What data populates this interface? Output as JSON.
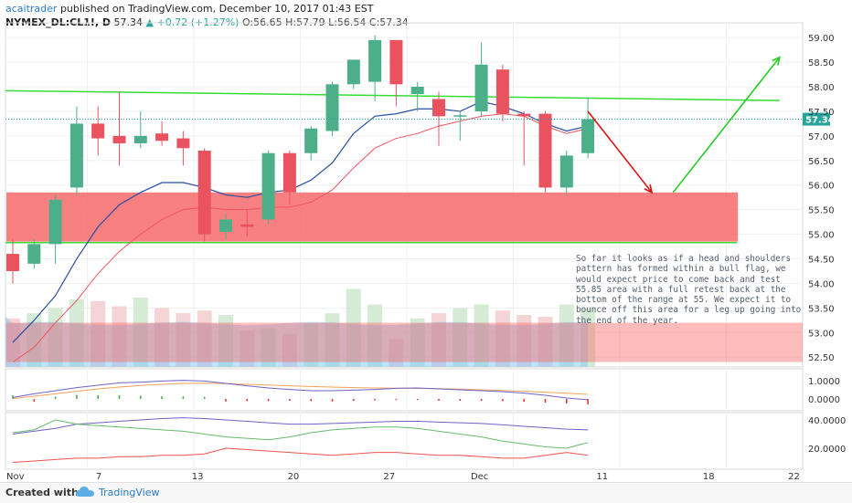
{
  "header": {
    "author": "acaitrader",
    "published": "published on TradingView.com, December 10, 2017 01:43 EST",
    "symbol": "NYMEX_DL:CL1!, D",
    "last": "57.34",
    "change_arrow": "▲",
    "change": "+0.72 (+1.27%)",
    "ohlc": "O:56.65 H:57.79 L:56.54 C:57.34"
  },
  "annotation": "So far it looks as if a head and shoulders pattern has formed within a bull flag, we would expect price to come back and test 55.85 area with a full retest back at the bottom of the range at 55. We expect it to bounce off this area for a leg up going into the end of the year.",
  "footer": {
    "created": "Created with",
    "brand": "TradingView"
  },
  "colors": {
    "bull": "#4caf8a",
    "bear": "#e8535f",
    "zone": "#f86a6a",
    "flag_line": "#33dd33",
    "ma_fast": "#2a4fa3",
    "ma_slow": "#ee5560",
    "projection_up": "#22cc22",
    "projection_down": "#dd1111",
    "volume_area": "#7ec8f5"
  },
  "chart_data": {
    "type": "candlestick",
    "symbol": "NYMEX_DL:CL1!",
    "timeframe": "D",
    "x_labels": [
      "Nov",
      "7",
      "13",
      "20",
      "27",
      "Dec",
      "11",
      "18",
      "22"
    ],
    "y_ticks": [
      52.5,
      53.0,
      53.5,
      54.0,
      54.5,
      55.0,
      55.5,
      56.0,
      56.5,
      57.0,
      57.5,
      58.0,
      58.5,
      59.0
    ],
    "ylim": [
      52.3,
      59.3
    ],
    "last_price": 57.34,
    "candles": [
      {
        "o": 54.6,
        "h": 54.9,
        "l": 54.0,
        "c": 54.25
      },
      {
        "o": 54.4,
        "h": 54.9,
        "l": 54.3,
        "c": 54.8
      },
      {
        "o": 54.8,
        "h": 55.8,
        "l": 54.4,
        "c": 55.7
      },
      {
        "o": 55.95,
        "h": 57.6,
        "l": 55.8,
        "c": 57.25
      },
      {
        "o": 57.25,
        "h": 57.6,
        "l": 56.6,
        "c": 56.95
      },
      {
        "o": 57.0,
        "h": 57.9,
        "l": 56.4,
        "c": 56.85
      },
      {
        "o": 56.85,
        "h": 57.5,
        "l": 56.75,
        "c": 57.0
      },
      {
        "o": 57.05,
        "h": 57.3,
        "l": 56.8,
        "c": 56.9
      },
      {
        "o": 56.95,
        "h": 57.1,
        "l": 56.4,
        "c": 56.75
      },
      {
        "o": 56.7,
        "h": 56.75,
        "l": 54.85,
        "c": 55.0
      },
      {
        "o": 55.05,
        "h": 55.4,
        "l": 54.9,
        "c": 55.3
      },
      {
        "o": 55.2,
        "h": 55.5,
        "l": 54.95,
        "c": 55.15
      },
      {
        "o": 55.3,
        "h": 56.7,
        "l": 55.2,
        "c": 56.65
      },
      {
        "o": 56.65,
        "h": 56.7,
        "l": 55.6,
        "c": 55.85
      },
      {
        "o": 56.65,
        "h": 57.2,
        "l": 56.5,
        "c": 57.15
      },
      {
        "o": 57.1,
        "h": 58.1,
        "l": 57.0,
        "c": 58.05
      },
      {
        "o": 58.05,
        "h": 58.55,
        "l": 57.95,
        "c": 58.55
      },
      {
        "o": 58.1,
        "h": 59.05,
        "l": 57.7,
        "c": 58.95
      },
      {
        "o": 58.95,
        "h": 58.95,
        "l": 57.6,
        "c": 58.05
      },
      {
        "o": 57.85,
        "h": 58.1,
        "l": 57.5,
        "c": 58.0
      },
      {
        "o": 57.75,
        "h": 57.9,
        "l": 56.8,
        "c": 57.4
      },
      {
        "o": 57.4,
        "h": 57.5,
        "l": 56.9,
        "c": 57.42
      },
      {
        "o": 57.5,
        "h": 58.9,
        "l": 57.4,
        "c": 58.45
      },
      {
        "o": 58.35,
        "h": 58.45,
        "l": 57.3,
        "c": 57.45
      },
      {
        "o": 57.45,
        "h": 57.5,
        "l": 56.4,
        "c": 57.4
      },
      {
        "o": 57.45,
        "h": 57.5,
        "l": 55.85,
        "c": 55.95
      },
      {
        "o": 55.95,
        "h": 56.7,
        "l": 55.8,
        "c": 56.6
      },
      {
        "o": 56.65,
        "h": 57.79,
        "l": 56.54,
        "c": 57.34
      }
    ],
    "ma_fast": [
      52.8,
      53.25,
      53.75,
      54.5,
      55.15,
      55.6,
      55.85,
      56.05,
      56.05,
      55.95,
      55.8,
      55.75,
      55.85,
      55.9,
      56.1,
      56.45,
      57.05,
      57.4,
      57.45,
      57.55,
      57.55,
      57.5,
      57.7,
      57.6,
      57.45,
      57.25,
      57.1,
      57.2
    ],
    "ma_slow": [
      52.4,
      52.7,
      53.2,
      53.65,
      54.2,
      54.65,
      55.0,
      55.3,
      55.5,
      55.55,
      55.5,
      55.5,
      55.55,
      55.55,
      55.65,
      55.9,
      56.35,
      56.75,
      56.95,
      57.05,
      57.2,
      57.3,
      57.4,
      57.45,
      57.4,
      57.2,
      57.05,
      57.15
    ],
    "resistance_line": [
      [
        0,
        57.92
      ],
      [
        36,
        57.72
      ]
    ],
    "support_line": [
      [
        0,
        54.83
      ],
      [
        34,
        54.83
      ]
    ],
    "support_zone": {
      "from": 54.85,
      "to": 55.85
    },
    "support_zone_cells": [
      0,
      34
    ],
    "projection": {
      "down": [
        [
          27,
          57.5
        ],
        [
          30,
          55.85
        ]
      ],
      "up": [
        [
          31,
          55.85
        ],
        [
          36,
          58.6
        ]
      ]
    },
    "lower_zone": {
      "from": 52.4,
      "to": 53.2
    },
    "volume": [
      0.56,
      0.62,
      0.68,
      0.78,
      0.76,
      0.7,
      0.8,
      0.68,
      0.62,
      0.65,
      0.6,
      0.42,
      0.45,
      0.38,
      0.5,
      0.62,
      0.9,
      0.72,
      0.32,
      0.56,
      0.62,
      0.68,
      0.72,
      0.65,
      0.6,
      0.58,
      0.72,
      0.68
    ],
    "indicator1": {
      "ticks": [
        "1.0000",
        "0.0000"
      ],
      "line_a": [
        0.08,
        0.28,
        0.45,
        0.62,
        0.75,
        0.88,
        0.92,
        0.98,
        1.02,
        0.98,
        0.85,
        0.72,
        0.6,
        0.52,
        0.45,
        0.45,
        0.48,
        0.52,
        0.58,
        0.6,
        0.55,
        0.5,
        0.45,
        0.4,
        0.32,
        0.2,
        0.05,
        -0.05
      ],
      "line_b": [
        0.02,
        0.15,
        0.28,
        0.42,
        0.55,
        0.65,
        0.74,
        0.8,
        0.85,
        0.86,
        0.84,
        0.8,
        0.76,
        0.72,
        0.68,
        0.65,
        0.62,
        0.6,
        0.59,
        0.58,
        0.56,
        0.54,
        0.5,
        0.46,
        0.42,
        0.37,
        0.31,
        0.25
      ],
      "histogram": [
        0.2,
        -0.15,
        0.12,
        0.22,
        0.2,
        0.2,
        0.18,
        0.15,
        0.14,
        0.12,
        -0.14,
        -0.12,
        -0.12,
        -0.1,
        -0.12,
        -0.14,
        -0.1,
        -0.08,
        -0.06,
        -0.06,
        -0.1,
        -0.1,
        -0.1,
        -0.12,
        -0.15,
        -0.2,
        -0.25,
        -0.3
      ]
    },
    "indicator2": {
      "ticks": [
        "40.0000",
        "20.0000"
      ],
      "line_blue": [
        30,
        32,
        34,
        37,
        38,
        39,
        40,
        41,
        41.5,
        41,
        40,
        39,
        38,
        37,
        37,
        37.5,
        38,
        38.5,
        39,
        39,
        38.5,
        38,
        37.5,
        36.5,
        35.5,
        34.5,
        33.5,
        33
      ],
      "line_green": [
        31,
        33,
        40,
        37,
        36,
        35,
        34,
        33,
        32,
        30,
        28,
        27,
        26,
        28,
        31,
        33,
        34,
        35,
        35,
        34,
        32,
        30,
        28,
        25,
        23,
        21,
        20,
        24
      ],
      "line_red": [
        10,
        11,
        12,
        13,
        13,
        14,
        14,
        15,
        15,
        16,
        20,
        19,
        18,
        17,
        16,
        15,
        16,
        17,
        17,
        16,
        15,
        15,
        14,
        13,
        13,
        15,
        17,
        15
      ]
    }
  }
}
